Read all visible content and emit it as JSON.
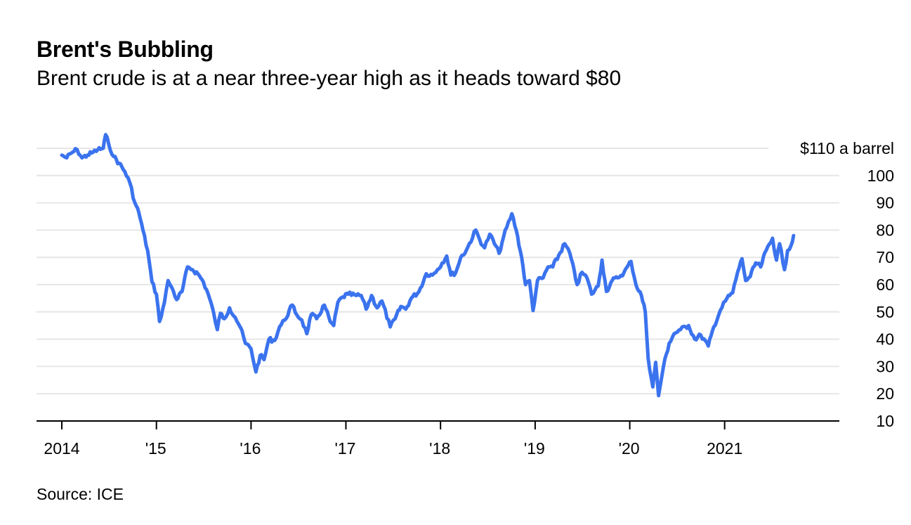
{
  "header": {
    "title": "Brent's Bubbling",
    "subtitle": "Brent crude is at a near three-year high as it heads toward $80"
  },
  "footer": {
    "source": "Source: ICE"
  },
  "colors": {
    "line": "#3b73ee",
    "grid": "#e6e6e6",
    "axis": "#000000"
  },
  "chart_data": {
    "type": "line",
    "title": "Brent's Bubbling",
    "subtitle": "Brent crude is at a near three-year high as it heads toward $80",
    "xlabel": "",
    "ylabel": "",
    "y_unit_label": "$110 a barrel",
    "ylim": [
      10,
      110
    ],
    "xlim": [
      "2014-01-01",
      "2021-12-31"
    ],
    "grid": true,
    "y_ticks": [
      {
        "value": 10,
        "label": "10"
      },
      {
        "value": 20,
        "label": "20"
      },
      {
        "value": 30,
        "label": "30"
      },
      {
        "value": 40,
        "label": "40"
      },
      {
        "value": 50,
        "label": "50"
      },
      {
        "value": 60,
        "label": "60"
      },
      {
        "value": 70,
        "label": "70"
      },
      {
        "value": 80,
        "label": "80"
      },
      {
        "value": 90,
        "label": "90"
      },
      {
        "value": 100,
        "label": "100"
      },
      {
        "value": 110,
        "label": "$110 a barrel"
      }
    ],
    "x_ticks": [
      {
        "date": "2014-01-01",
        "label": "2014"
      },
      {
        "date": "2015-01-01",
        "label": "'15"
      },
      {
        "date": "2016-01-01",
        "label": "'16"
      },
      {
        "date": "2017-01-01",
        "label": "'17"
      },
      {
        "date": "2018-01-01",
        "label": "'18"
      },
      {
        "date": "2019-01-01",
        "label": "'19"
      },
      {
        "date": "2020-01-01",
        "label": "'20"
      },
      {
        "date": "2021-01-01",
        "label": "2021"
      }
    ],
    "series": [
      {
        "values": [
          [
            "2014-01-01",
            107.5
          ],
          [
            "2014-01-20",
            106.5
          ],
          [
            "2014-02-10",
            108.5
          ],
          [
            "2014-03-01",
            109.5
          ],
          [
            "2014-03-20",
            106.5
          ],
          [
            "2014-04-10",
            107.5
          ],
          [
            "2014-05-01",
            108.5
          ],
          [
            "2014-05-20",
            109.5
          ],
          [
            "2014-06-10",
            110.0
          ],
          [
            "2014-06-19",
            115.0
          ],
          [
            "2014-07-01",
            111.5
          ],
          [
            "2014-07-20",
            107.0
          ],
          [
            "2014-08-10",
            104.5
          ],
          [
            "2014-09-01",
            101.5
          ],
          [
            "2014-09-20",
            97.5
          ],
          [
            "2014-10-10",
            90.0
          ],
          [
            "2014-10-25",
            86.5
          ],
          [
            "2014-11-10",
            80.0
          ],
          [
            "2014-11-28",
            72.5
          ],
          [
            "2014-12-15",
            61.0
          ],
          [
            "2015-01-01",
            56.5
          ],
          [
            "2015-01-13",
            46.5
          ],
          [
            "2015-02-01",
            53.5
          ],
          [
            "2015-02-15",
            61.5
          ],
          [
            "2015-03-01",
            59.0
          ],
          [
            "2015-03-20",
            54.5
          ],
          [
            "2015-04-10",
            57.5
          ],
          [
            "2015-05-01",
            66.5
          ],
          [
            "2015-05-20",
            65.5
          ],
          [
            "2015-06-10",
            64.0
          ],
          [
            "2015-07-01",
            61.0
          ],
          [
            "2015-07-20",
            56.5
          ],
          [
            "2015-08-10",
            49.5
          ],
          [
            "2015-08-24",
            43.5
          ],
          [
            "2015-09-05",
            49.5
          ],
          [
            "2015-09-20",
            47.5
          ],
          [
            "2015-10-10",
            51.5
          ],
          [
            "2015-11-01",
            48.0
          ],
          [
            "2015-11-20",
            44.5
          ],
          [
            "2015-12-10",
            38.5
          ],
          [
            "2016-01-01",
            36.5
          ],
          [
            "2016-01-20",
            28.0
          ],
          [
            "2016-02-05",
            34.0
          ],
          [
            "2016-02-20",
            32.5
          ],
          [
            "2016-03-10",
            40.0
          ],
          [
            "2016-04-01",
            39.5
          ],
          [
            "2016-04-20",
            44.5
          ],
          [
            "2016-05-10",
            47.0
          ],
          [
            "2016-06-08",
            52.5
          ],
          [
            "2016-06-25",
            49.0
          ],
          [
            "2016-07-15",
            47.0
          ],
          [
            "2016-08-03",
            42.0
          ],
          [
            "2016-08-20",
            49.0
          ],
          [
            "2016-09-10",
            47.5
          ],
          [
            "2016-10-10",
            52.5
          ],
          [
            "2016-11-01",
            46.5
          ],
          [
            "2016-11-15",
            45.0
          ],
          [
            "2016-12-01",
            53.5
          ],
          [
            "2016-12-20",
            55.5
          ],
          [
            "2017-01-10",
            56.5
          ],
          [
            "2017-02-10",
            56.0
          ],
          [
            "2017-03-01",
            56.0
          ],
          [
            "2017-03-20",
            51.0
          ],
          [
            "2017-04-10",
            56.0
          ],
          [
            "2017-05-01",
            51.5
          ],
          [
            "2017-05-20",
            54.0
          ],
          [
            "2017-06-21",
            44.5
          ],
          [
            "2017-07-10",
            47.5
          ],
          [
            "2017-08-01",
            52.0
          ],
          [
            "2017-08-20",
            51.0
          ],
          [
            "2017-09-10",
            55.0
          ],
          [
            "2017-10-10",
            57.5
          ],
          [
            "2017-11-07",
            64.0
          ],
          [
            "2017-12-01",
            63.5
          ],
          [
            "2017-12-20",
            65.5
          ],
          [
            "2018-01-25",
            70.5
          ],
          [
            "2018-02-10",
            63.5
          ],
          [
            "2018-03-01",
            64.5
          ],
          [
            "2018-03-20",
            70.0
          ],
          [
            "2018-04-10",
            72.5
          ],
          [
            "2018-05-17",
            80.0
          ],
          [
            "2018-06-01",
            76.5
          ],
          [
            "2018-06-20",
            73.5
          ],
          [
            "2018-07-10",
            78.5
          ],
          [
            "2018-08-15",
            71.5
          ],
          [
            "2018-09-01",
            77.5
          ],
          [
            "2018-10-03",
            86.0
          ],
          [
            "2018-10-20",
            80.0
          ],
          [
            "2018-11-10",
            70.0
          ],
          [
            "2018-11-25",
            60.0
          ],
          [
            "2018-12-10",
            61.5
          ],
          [
            "2018-12-24",
            50.5
          ],
          [
            "2019-01-10",
            61.5
          ],
          [
            "2019-02-01",
            62.5
          ],
          [
            "2019-02-20",
            66.5
          ],
          [
            "2019-03-10",
            66.5
          ],
          [
            "2019-04-25",
            75.0
          ],
          [
            "2019-05-15",
            71.5
          ],
          [
            "2019-06-12",
            60.0
          ],
          [
            "2019-07-01",
            64.5
          ],
          [
            "2019-07-20",
            62.5
          ],
          [
            "2019-08-07",
            56.5
          ],
          [
            "2019-09-01",
            59.5
          ],
          [
            "2019-09-16",
            69.0
          ],
          [
            "2019-10-03",
            57.5
          ],
          [
            "2019-10-25",
            61.5
          ],
          [
            "2019-11-15",
            62.5
          ],
          [
            "2019-12-10",
            64.5
          ],
          [
            "2020-01-06",
            68.5
          ],
          [
            "2020-01-25",
            60.0
          ],
          [
            "2020-02-15",
            56.0
          ],
          [
            "2020-03-01",
            50.0
          ],
          [
            "2020-03-12",
            33.0
          ],
          [
            "2020-03-30",
            22.5
          ],
          [
            "2020-04-10",
            31.5
          ],
          [
            "2020-04-21",
            19.3
          ],
          [
            "2020-05-10",
            30.0
          ],
          [
            "2020-06-01",
            38.5
          ],
          [
            "2020-06-20",
            42.0
          ],
          [
            "2020-07-15",
            43.5
          ],
          [
            "2020-08-15",
            45.0
          ],
          [
            "2020-09-08",
            40.0
          ],
          [
            "2020-10-01",
            41.5
          ],
          [
            "2020-10-30",
            37.5
          ],
          [
            "2020-11-20",
            44.5
          ],
          [
            "2020-12-15",
            50.5
          ],
          [
            "2021-01-10",
            55.0
          ],
          [
            "2021-02-01",
            57.0
          ],
          [
            "2021-02-20",
            64.5
          ],
          [
            "2021-03-09",
            69.5
          ],
          [
            "2021-03-23",
            61.5
          ],
          [
            "2021-04-10",
            63.0
          ],
          [
            "2021-05-01",
            68.0
          ],
          [
            "2021-05-20",
            66.5
          ],
          [
            "2021-06-10",
            72.5
          ],
          [
            "2021-07-05",
            77.0
          ],
          [
            "2021-07-20",
            69.0
          ],
          [
            "2021-08-01",
            75.0
          ],
          [
            "2021-08-20",
            65.5
          ],
          [
            "2021-09-01",
            72.5
          ],
          [
            "2021-09-15",
            74.5
          ],
          [
            "2021-09-24",
            78.0
          ]
        ]
      }
    ]
  }
}
